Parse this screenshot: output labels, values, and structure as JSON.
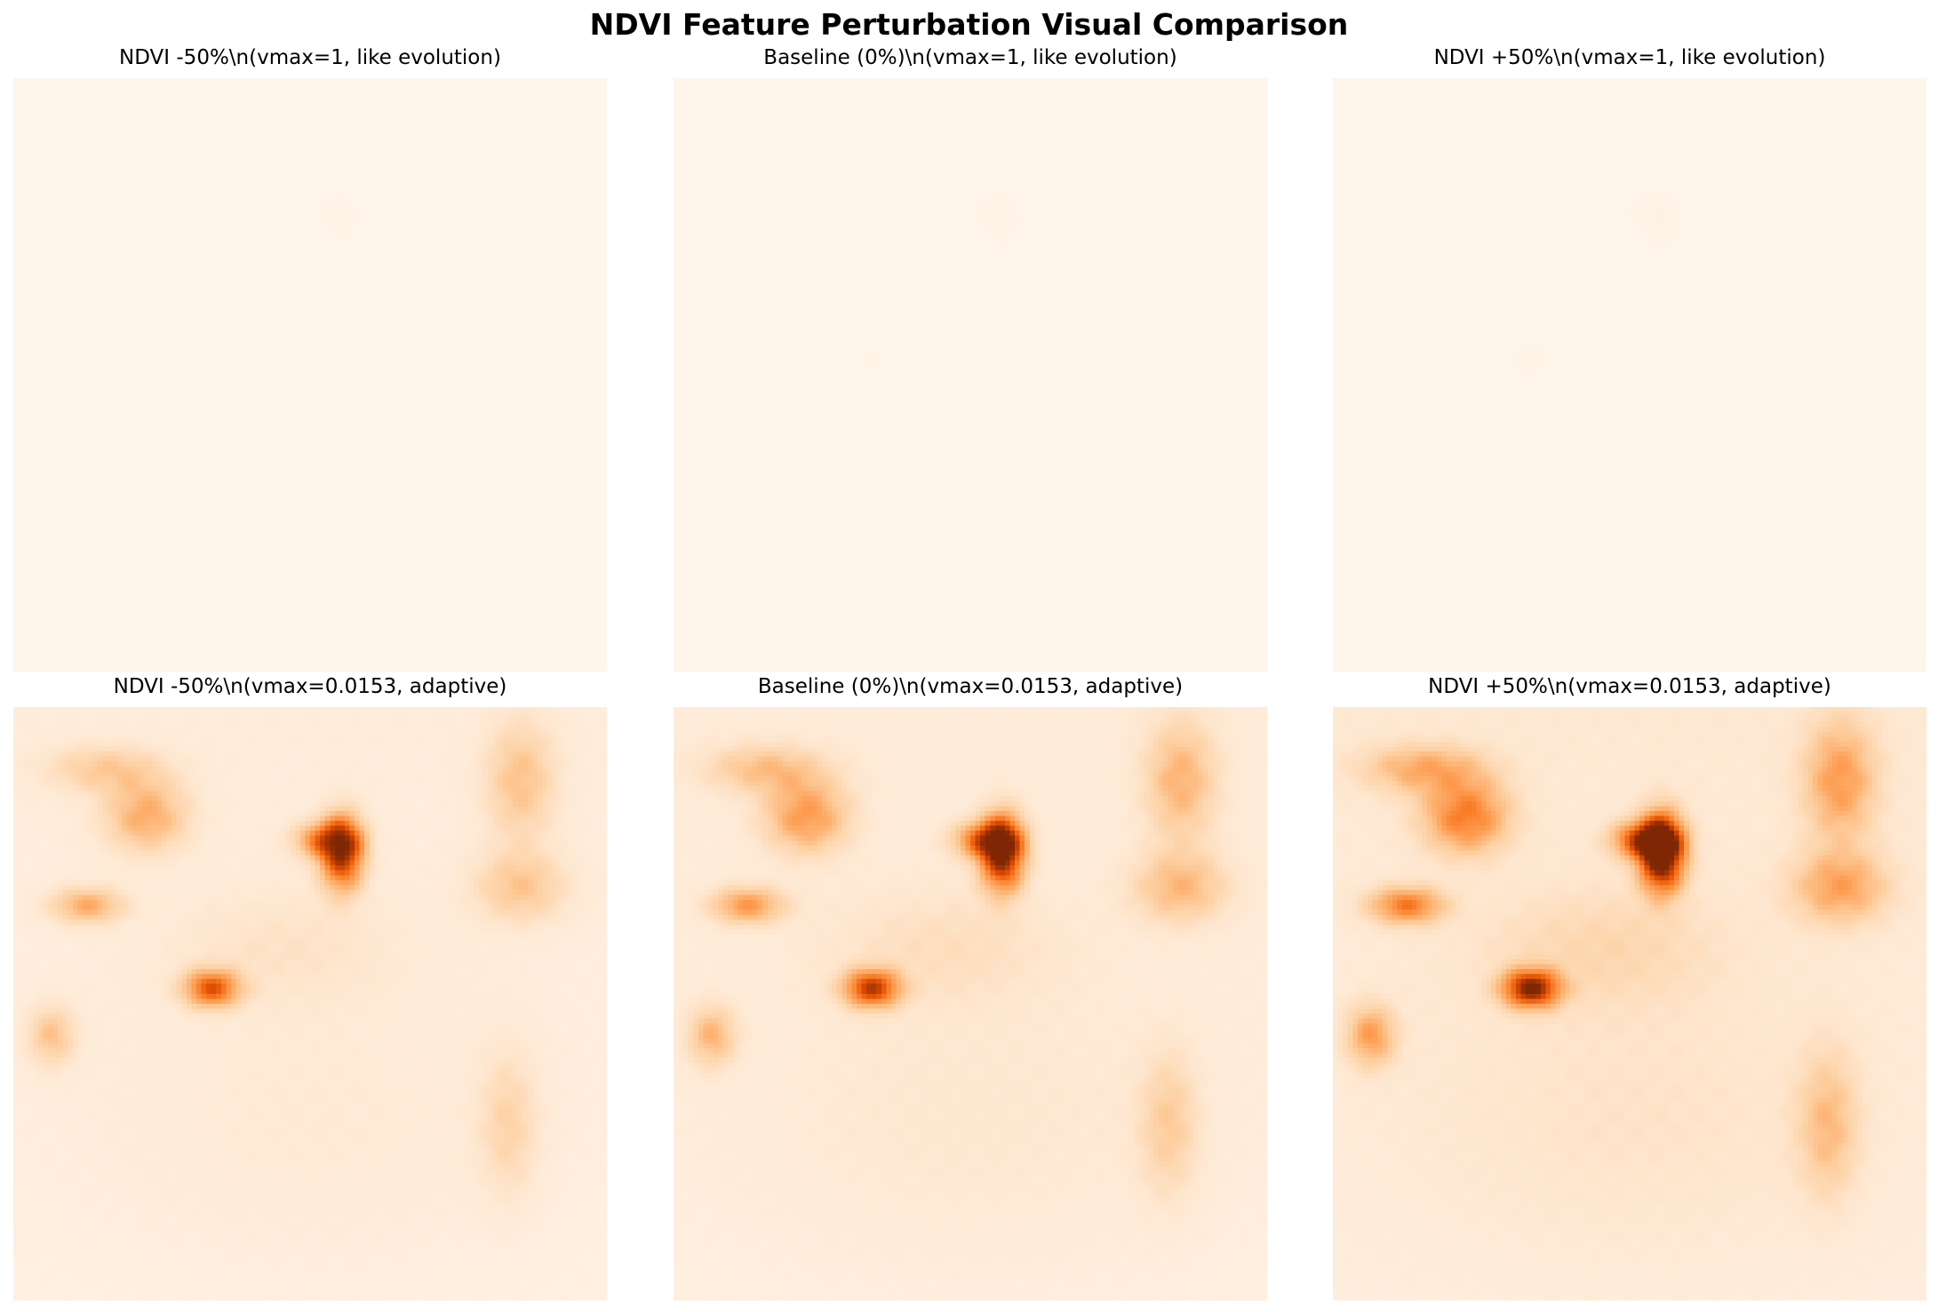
{
  "title": "NDVI Feature Perturbation Visual Comparison",
  "colormap": [
    "#fff5eb",
    "#fee6ce",
    "#fdd0a2",
    "#fdae6b",
    "#fd8d3c",
    "#f16913",
    "#d94801",
    "#a63603",
    "#7f2704"
  ],
  "chart_data": [
    {
      "type": "heatmap",
      "title": "NDVI -50%\\n(vmax=1, like evolution)",
      "vmax": 1,
      "perturbation": -50
    },
    {
      "type": "heatmap",
      "title": "Baseline (0%)\\n(vmax=1, like evolution)",
      "vmax": 1,
      "perturbation": 0
    },
    {
      "type": "heatmap",
      "title": "NDVI +50%\\n(vmax=1, like evolution)",
      "vmax": 1,
      "perturbation": 50
    },
    {
      "type": "heatmap",
      "title": "NDVI -50%\\n(vmax=0.0153, adaptive)",
      "vmax": 0.0153,
      "perturbation": -50
    },
    {
      "type": "heatmap",
      "title": "Baseline (0%)\\n(vmax=0.0153, adaptive)",
      "vmax": 0.0153,
      "perturbation": 0
    },
    {
      "type": "heatmap",
      "title": "NDVI +50%\\n(vmax=0.0153, adaptive)",
      "vmax": 0.0153,
      "perturbation": 50
    }
  ]
}
